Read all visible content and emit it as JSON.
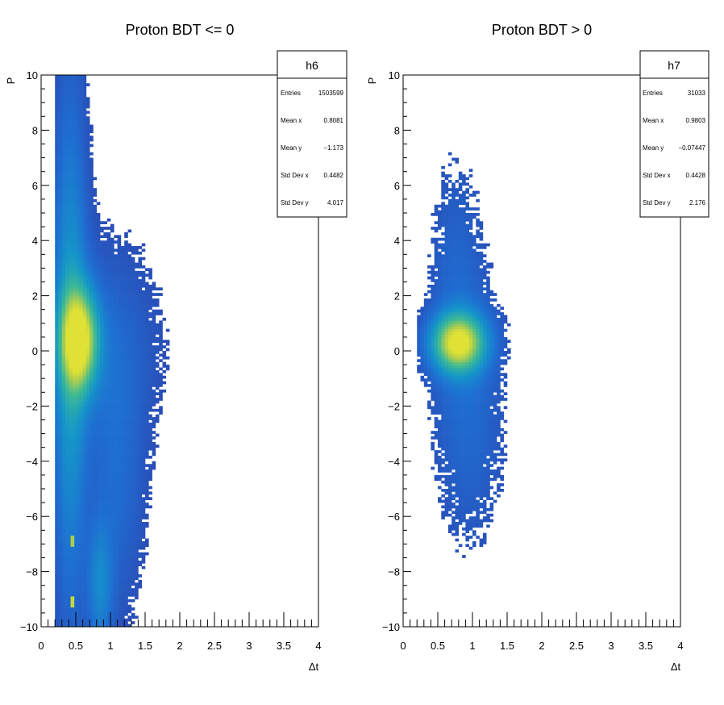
{
  "chart_data": [
    {
      "type": "heatmap",
      "title": "Proton BDT <= 0",
      "xlabel": "Δt",
      "ylabel": "P",
      "xlim": [
        0,
        4
      ],
      "ylim": [
        -10,
        10
      ],
      "xticks": [
        "0",
        "0.5",
        "1",
        "1.5",
        "2",
        "2.5",
        "3",
        "3.5",
        "4"
      ],
      "yticks": [
        "10",
        "8",
        "6",
        "4",
        "2",
        "0",
        "−2",
        "−4",
        "−6",
        "−8",
        "−10"
      ],
      "colormap": "viridis-like (blue to yellow)",
      "stats": {
        "name": "h6",
        "rows": [
          {
            "label": "Entries",
            "value": "1503599"
          },
          {
            "label": "Mean x",
            "value": "0.8081"
          },
          {
            "label": "Mean y",
            "value": "−1.173"
          },
          {
            "label": "Std Dev x",
            "value": "0.4482"
          },
          {
            "label": "Std Dev y",
            "value": "4.017"
          }
        ]
      },
      "density_components": [
        {
          "x": 0.55,
          "y": 0.4,
          "sx": 0.18,
          "sy": 1.2,
          "w": 1.0
        },
        {
          "x": 0.42,
          "y": 0.0,
          "sx": 0.16,
          "sy": 6.0,
          "w": 0.35
        },
        {
          "x": 0.85,
          "y": -8.5,
          "sx": 0.12,
          "sy": 1.6,
          "w": 0.25
        },
        {
          "x": 1.1,
          "y": -5.0,
          "sx": 0.25,
          "sy": 3.0,
          "w": 0.12
        },
        {
          "x": 0.9,
          "y": 0.0,
          "sx": 0.5,
          "sy": 2.5,
          "w": 0.12
        }
      ],
      "hotspots": [
        {
          "x": 0.45,
          "y": -6.9,
          "value": 0.85
        },
        {
          "x": 0.45,
          "y": -9.1,
          "value": 0.9
        }
      ]
    },
    {
      "type": "heatmap",
      "title": "Proton BDT > 0",
      "xlabel": "Δt",
      "ylabel": "P",
      "xlim": [
        0,
        4
      ],
      "ylim": [
        -10,
        10
      ],
      "xticks": [
        "0",
        "0.5",
        "1",
        "1.5",
        "2",
        "2.5",
        "3",
        "3.5",
        "4"
      ],
      "yticks": [
        "10",
        "8",
        "6",
        "4",
        "2",
        "0",
        "−2",
        "−4",
        "−6",
        "−8",
        "−10"
      ],
      "colormap": "viridis-like (blue to yellow)",
      "stats": {
        "name": "h7",
        "rows": [
          {
            "label": "Entries",
            "value": "31033"
          },
          {
            "label": "Mean x",
            "value": "0.9803"
          },
          {
            "label": "Mean y",
            "value": "−0.07447"
          },
          {
            "label": "Std Dev x",
            "value": "0.4428"
          },
          {
            "label": "Std Dev y",
            "value": "2.176"
          }
        ]
      },
      "density_components": [
        {
          "x": 0.8,
          "y": 0.3,
          "sx": 0.25,
          "sy": 0.7,
          "w": 1.0
        },
        {
          "x": 0.95,
          "y": -2.0,
          "sx": 0.35,
          "sy": 3.5,
          "w": 0.12
        },
        {
          "x": 0.75,
          "y": 3.0,
          "sx": 0.25,
          "sy": 3.0,
          "w": 0.08
        }
      ],
      "hotspots": []
    }
  ]
}
